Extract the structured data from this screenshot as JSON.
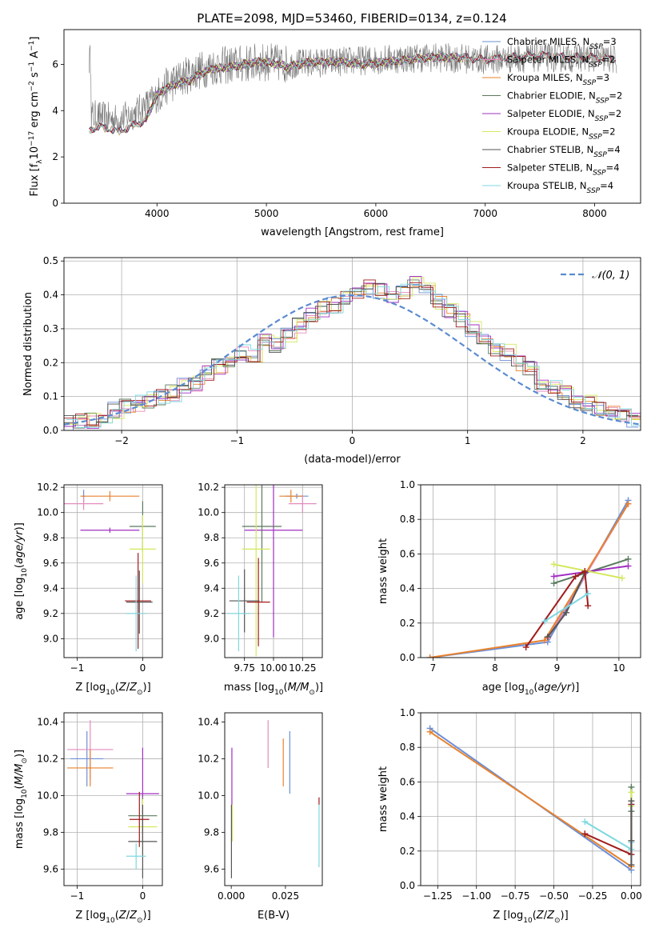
{
  "figure_title": "PLATE=2098, MJD=53460, FIBERID=0134, z=0.124",
  "colors": {
    "Chabrier MILES": "#6b8fd6",
    "Salpeter MILES": "#e48bbd",
    "Kroupa MILES": "#e8822e",
    "Chabrier ELODIE": "#5b7a5e",
    "Salpeter ELODIE": "#a12fc2",
    "Kroupa ELODIE": "#d4e85e",
    "Chabrier STELIB": "#555555",
    "Salpeter STELIB": "#a11b1b",
    "Kroupa STELIB": "#7fd8e0",
    "normal": "#5b8bd0",
    "grid": "#b0b0b0"
  },
  "chart_data": [
    {
      "id": "spectrum",
      "type": "line",
      "title": "PLATE=2098, MJD=53460, FIBERID=0134, z=0.124",
      "xlabel": "wavelength [Angstrom, rest frame]",
      "ylabel_parts": [
        "Flux [f",
        "λ",
        "10",
        "−17",
        " erg cm",
        "−2",
        " s",
        "−1",
        " A",
        "−1",
        "]"
      ],
      "xlim": [
        3150,
        8420
      ],
      "ylim": [
        0,
        7.5
      ],
      "xticks": [
        4000,
        5000,
        6000,
        7000,
        8000
      ],
      "yticks": [
        0,
        2,
        4,
        6
      ],
      "grid": false,
      "legend_position": "top-right",
      "legend": [
        {
          "name": "Chabrier MILES",
          "nssp": "3"
        },
        {
          "name": "Salpeter MILES",
          "nssp": "2"
        },
        {
          "name": "Kroupa MILES",
          "nssp": "3"
        },
        {
          "name": "Chabrier ELODIE",
          "nssp": "2"
        },
        {
          "name": "Salpeter ELODIE",
          "nssp": "2"
        },
        {
          "name": "Kroupa ELODIE",
          "nssp": "2"
        },
        {
          "name": "Chabrier STELIB",
          "nssp": "4"
        },
        {
          "name": "Salpeter STELIB",
          "nssp": "4"
        },
        {
          "name": "Kroupa STELIB",
          "nssp": "4"
        }
      ],
      "data_spectrum": {
        "x_range": [
          3380,
          8200
        ],
        "y_range": [
          0,
          7.5
        ],
        "description_points": [
          [
            3400,
            3.8
          ],
          [
            3650,
            3.6
          ],
          [
            3800,
            3.9
          ],
          [
            4000,
            4.6
          ],
          [
            4100,
            5.1
          ],
          [
            4300,
            5.6
          ],
          [
            4500,
            5.9
          ],
          [
            5000,
            6.1
          ],
          [
            5200,
            6.0
          ],
          [
            5600,
            6.1
          ],
          [
            6000,
            6.2
          ],
          [
            6500,
            6.3
          ],
          [
            7000,
            6.2
          ],
          [
            7500,
            6.3
          ],
          [
            8000,
            6.3
          ],
          [
            8200,
            6.2
          ]
        ]
      },
      "model_curve": [
        [
          3380,
          3.2
        ],
        [
          3500,
          3.3
        ],
        [
          3650,
          3.1
        ],
        [
          3800,
          3.4
        ],
        [
          3900,
          3.6
        ],
        [
          4000,
          4.7
        ],
        [
          4100,
          5.0
        ],
        [
          4200,
          5.2
        ],
        [
          4300,
          5.3
        ],
        [
          4400,
          5.6
        ],
        [
          4500,
          5.8
        ],
        [
          4700,
          5.9
        ],
        [
          4900,
          6.1
        ],
        [
          5000,
          6.1
        ],
        [
          5200,
          5.9
        ],
        [
          5400,
          6.1
        ],
        [
          5700,
          6.1
        ],
        [
          5900,
          6.0
        ],
        [
          6100,
          6.1
        ],
        [
          6300,
          6.2
        ],
        [
          6500,
          6.3
        ],
        [
          6800,
          6.3
        ],
        [
          7000,
          6.2
        ],
        [
          7200,
          6.3
        ],
        [
          7500,
          6.4
        ],
        [
          7800,
          6.3
        ],
        [
          8000,
          6.3
        ],
        [
          8200,
          6.2
        ]
      ]
    },
    {
      "id": "residual_hist",
      "type": "histogram",
      "xlabel": "(data-model)/error",
      "ylabel": "Normed distribution",
      "xlim": [
        -2.5,
        2.5
      ],
      "ylim": [
        0,
        0.51
      ],
      "xticks": [
        -2,
        -1,
        0,
        1,
        2
      ],
      "yticks": [
        0.0,
        0.1,
        0.2,
        0.3,
        0.4,
        0.5
      ],
      "grid": true,
      "legend_position": "top-right",
      "legend": [
        "𝒩(0, 1)"
      ],
      "bin_edges_start": -2.5,
      "bin_width": 0.1,
      "bin_values": [
        0.02,
        0.03,
        0.03,
        0.04,
        0.06,
        0.07,
        0.08,
        0.09,
        0.1,
        0.11,
        0.13,
        0.14,
        0.17,
        0.19,
        0.21,
        0.23,
        0.22,
        0.26,
        0.25,
        0.28,
        0.31,
        0.34,
        0.36,
        0.37,
        0.39,
        0.4,
        0.42,
        0.41,
        0.4,
        0.41,
        0.44,
        0.42,
        0.38,
        0.35,
        0.33,
        0.3,
        0.28,
        0.24,
        0.23,
        0.2,
        0.18,
        0.14,
        0.13,
        0.11,
        0.09,
        0.08,
        0.06,
        0.05,
        0.04,
        0.03
      ],
      "normal_curve": {
        "mean": 0,
        "sigma": 1
      }
    },
    {
      "id": "age_vs_Z",
      "type": "errorbar",
      "xlabel_main": "Z [log",
      "xlabel_sub": "10",
      "xlabel_rest": "(Z/Z",
      "xlabel_sun": "⊙",
      "xlabel_end": ")]",
      "ylabel": "age  [log10(age/yr)]",
      "xlim": [
        -1.2,
        0.3
      ],
      "ylim": [
        8.85,
        10.22
      ],
      "xticks": [
        -1,
        0
      ],
      "yticks": [
        9.0,
        9.2,
        9.4,
        9.6,
        9.8,
        10.0,
        10.2
      ],
      "grid": true,
      "points": [
        {
          "model": "Chabrier MILES",
          "x": -0.9,
          "xerr": 0.02,
          "y": 10.13,
          "yerr": 0.05
        },
        {
          "model": "Salpeter MILES",
          "x": -0.9,
          "xerr": 0.3,
          "y": 10.07,
          "yerr": 0.05
        },
        {
          "model": "Kroupa MILES",
          "x": -0.5,
          "xerr": 0.45,
          "y": 10.13,
          "yerr": 0.04
        },
        {
          "model": "Salpeter ELODIE",
          "x": -0.5,
          "xerr": 0.45,
          "y": 9.86,
          "yerr": 0.02
        },
        {
          "model": "Chabrier ELODIE",
          "x": 0.0,
          "xerr": 0.2,
          "y": 9.89,
          "yerr": 0.2
        },
        {
          "model": "Kroupa ELODIE",
          "x": 0.0,
          "xerr": 0.2,
          "y": 9.71,
          "yerr": 0.27
        },
        {
          "model": "Chabrier STELIB",
          "x": -0.05,
          "xerr": 0.2,
          "y": 9.29,
          "yerr": 0.25
        },
        {
          "model": "Salpeter STELIB",
          "x": -0.07,
          "xerr": 0.2,
          "y": 9.3,
          "yerr": 0.38
        },
        {
          "model": "Kroupa STELIB",
          "x": -0.1,
          "xerr": 0.15,
          "y": 9.2,
          "yerr": 0.3
        }
      ]
    },
    {
      "id": "age_vs_mass",
      "type": "errorbar",
      "xlabel": "mass [log10(M/M⊙)]",
      "ylabel": "",
      "xlim": [
        9.58,
        10.42
      ],
      "ylim": [
        8.85,
        10.22
      ],
      "xticks": [
        9.75,
        10.0,
        10.25
      ],
      "xticklabels": [
        "9.75",
        "10.00",
        "10.25"
      ],
      "yticks": [
        9.0,
        9.2,
        9.4,
        9.6,
        9.8,
        10.0,
        10.2
      ],
      "grid": true,
      "points": [
        {
          "model": "Chabrier MILES",
          "x": 10.2,
          "xerr": 0.1,
          "y": 10.13,
          "yerr": 0.02
        },
        {
          "model": "Salpeter MILES",
          "x": 10.25,
          "xerr": 0.12,
          "y": 10.07,
          "yerr": 0.07
        },
        {
          "model": "Kroupa MILES",
          "x": 10.15,
          "xerr": 0.1,
          "y": 10.13,
          "yerr": 0.05
        },
        {
          "model": "Salpeter ELODIE",
          "x": 10.0,
          "xerr": 0.25,
          "y": 9.86,
          "yerr": 0.85
        },
        {
          "model": "Chabrier ELODIE",
          "x": 9.9,
          "xerr": 0.17,
          "y": 9.89,
          "yerr": 0.6
        },
        {
          "model": "Kroupa ELODIE",
          "x": 9.85,
          "xerr": 0.12,
          "y": 9.71,
          "yerr": 0.85
        },
        {
          "model": "Chabrier STELIB",
          "x": 9.75,
          "xerr": 0.13,
          "y": 9.3,
          "yerr": 0.25
        },
        {
          "model": "Salpeter STELIB",
          "x": 9.87,
          "xerr": 0.1,
          "y": 9.29,
          "yerr": 0.35
        },
        {
          "model": "Kroupa STELIB",
          "x": 9.7,
          "xerr": 0.1,
          "y": 9.2,
          "yerr": 0.3
        }
      ]
    },
    {
      "id": "weight_vs_age",
      "type": "line",
      "xlabel": "age  [log10(age/yr)]",
      "ylabel": "mass weight",
      "xlim": [
        6.8,
        10.35
      ],
      "ylim": [
        0,
        1.0
      ],
      "xticks": [
        7,
        8,
        9,
        10
      ],
      "yticks": [
        0.0,
        0.2,
        0.4,
        0.6,
        0.8,
        1.0
      ],
      "grid": true,
      "series": [
        {
          "model": "Chabrier MILES",
          "x": [
            6.95,
            8.85,
            10.15
          ],
          "y": [
            0.0,
            0.09,
            0.91
          ]
        },
        {
          "model": "Salpeter MILES",
          "x": [
            8.85,
            10.15
          ],
          "y": [
            0.11,
            0.89
          ]
        },
        {
          "model": "Kroupa MILES",
          "x": [
            6.95,
            8.8,
            10.15
          ],
          "y": [
            0.0,
            0.1,
            0.89
          ]
        },
        {
          "model": "Chabrier ELODIE",
          "x": [
            8.95,
            10.15
          ],
          "y": [
            0.43,
            0.57
          ]
        },
        {
          "model": "Salpeter ELODIE",
          "x": [
            8.95,
            10.15
          ],
          "y": [
            0.47,
            0.53
          ]
        },
        {
          "model": "Kroupa ELODIE",
          "x": [
            8.95,
            10.05
          ],
          "y": [
            0.54,
            0.46
          ]
        },
        {
          "model": "Chabrier STELIB",
          "x": [
            8.85,
            9.15,
            9.45
          ],
          "y": [
            0.12,
            0.26,
            0.49
          ]
        },
        {
          "model": "Salpeter STELIB",
          "x": [
            8.5,
            9.3,
            9.45,
            9.5
          ],
          "y": [
            0.06,
            0.47,
            0.5,
            0.3
          ]
        },
        {
          "model": "Kroupa STELIB",
          "x": [
            8.8,
            9.5
          ],
          "y": [
            0.21,
            0.37
          ]
        }
      ]
    },
    {
      "id": "mass_vs_Z",
      "type": "errorbar",
      "xlabel": "Z [log10(Z/Z⊙)]",
      "ylabel": "mass [log10(M/M⊙)]",
      "xlim": [
        -1.2,
        0.3
      ],
      "ylim": [
        9.51,
        10.45
      ],
      "xticks": [
        -1,
        0
      ],
      "yticks": [
        9.6,
        9.8,
        10.0,
        10.2,
        10.4
      ],
      "grid": true,
      "points": [
        {
          "model": "Chabrier MILES",
          "x": -0.85,
          "xerr": 0.25,
          "y": 10.2,
          "yerr": 0.15
        },
        {
          "model": "Salpeter MILES",
          "x": -0.8,
          "xerr": 0.35,
          "y": 10.25,
          "yerr": 0.16
        },
        {
          "model": "Kroupa MILES",
          "x": -0.8,
          "xerr": 0.35,
          "y": 10.15,
          "yerr": 0.1
        },
        {
          "model": "Salpeter ELODIE",
          "x": 0.0,
          "xerr": 0.25,
          "y": 10.01,
          "yerr": 0.25
        },
        {
          "model": "Chabrier ELODIE",
          "x": 0.0,
          "xerr": 0.22,
          "y": 9.89,
          "yerr": 0.1
        },
        {
          "model": "Kroupa ELODIE",
          "x": 0.0,
          "xerr": 0.22,
          "y": 9.83,
          "yerr": 0.15
        },
        {
          "model": "Chabrier STELIB",
          "x": 0.0,
          "xerr": 0.22,
          "y": 9.75,
          "yerr": 0.2
        },
        {
          "model": "Salpeter STELIB",
          "x": -0.05,
          "xerr": 0.15,
          "y": 9.87,
          "yerr": 0.15
        },
        {
          "model": "Kroupa STELIB",
          "x": -0.1,
          "xerr": 0.15,
          "y": 9.67,
          "yerr": 0.07
        }
      ]
    },
    {
      "id": "mass_vs_EBV",
      "type": "errorbar",
      "xlabel": "E(B-V)",
      "ylabel": "",
      "xlim": [
        -0.003,
        0.042
      ],
      "ylim": [
        9.51,
        10.45
      ],
      "xticks": [
        0.0,
        0.025
      ],
      "xticklabels": [
        "0.000",
        "0.025"
      ],
      "yticks": [
        9.6,
        9.8,
        10.0,
        10.2,
        10.4
      ],
      "grid": false,
      "points": [
        {
          "model": "Salpeter MILES",
          "x": 0.017,
          "yerr": 0.13,
          "y": 10.28
        },
        {
          "model": "Kroupa MILES",
          "x": 0.024,
          "yerr": 0.13,
          "y": 10.18
        },
        {
          "model": "Chabrier MILES",
          "x": 0.027,
          "yerr": 0.17,
          "y": 10.18
        },
        {
          "model": "Salpeter ELODIE",
          "x": 0.0003,
          "yerr": 0.2,
          "y": 10.06
        },
        {
          "model": "Kroupa ELODIE",
          "x": 0.0005,
          "yerr": 0.1,
          "y": 9.85
        },
        {
          "model": "Chabrier STELIB",
          "x": 0.0001,
          "yerr": 0.2,
          "y": 9.75
        },
        {
          "model": "Salpeter STELIB",
          "x": 0.0405,
          "yerr": 0.02,
          "y": 9.97
        },
        {
          "model": "Kroupa STELIB",
          "x": 0.0405,
          "yerr": 0.17,
          "y": 9.78
        }
      ]
    },
    {
      "id": "weight_vs_Z",
      "type": "line",
      "xlabel": "Z [log10(Z/Z⊙)]",
      "ylabel": "mass weight",
      "xlim": [
        -1.36,
        0.06
      ],
      "ylim": [
        0,
        1.0
      ],
      "xticks": [
        -1.25,
        -1.0,
        -0.75,
        -0.5,
        -0.25,
        0.0
      ],
      "xticklabels": [
        "−1.25",
        "−1.00",
        "−0.75",
        "−0.50",
        "−0.25",
        "0.00"
      ],
      "yticks": [
        0.0,
        0.2,
        0.4,
        0.6,
        0.8,
        1.0
      ],
      "grid": true,
      "series": [
        {
          "model": "Chabrier MILES",
          "x": [
            -1.3,
            0.0
          ],
          "y": [
            0.91,
            0.09
          ]
        },
        {
          "model": "Kroupa MILES",
          "x": [
            -1.3,
            0.0
          ],
          "y": [
            0.89,
            0.11
          ]
        },
        {
          "model": "Salpeter STELIB",
          "x": [
            -0.3,
            0.0,
            0.0
          ],
          "y": [
            0.3,
            0.18,
            0.47
          ]
        },
        {
          "model": "Kroupa STELIB",
          "x": [
            -0.3,
            0.0,
            0.0
          ],
          "y": [
            0.37,
            0.21,
            0.25
          ]
        },
        {
          "model": "Chabrier ELODIE",
          "x": [
            0.0,
            0.0
          ],
          "y": [
            0.43,
            0.57
          ]
        },
        {
          "model": "Kroupa ELODIE",
          "x": [
            0.0,
            0.0
          ],
          "y": [
            0.46,
            0.54
          ]
        },
        {
          "model": "Chabrier STELIB",
          "x": [
            0.0,
            0.0,
            0.0
          ],
          "y": [
            0.12,
            0.26,
            0.49
          ]
        }
      ]
    }
  ]
}
